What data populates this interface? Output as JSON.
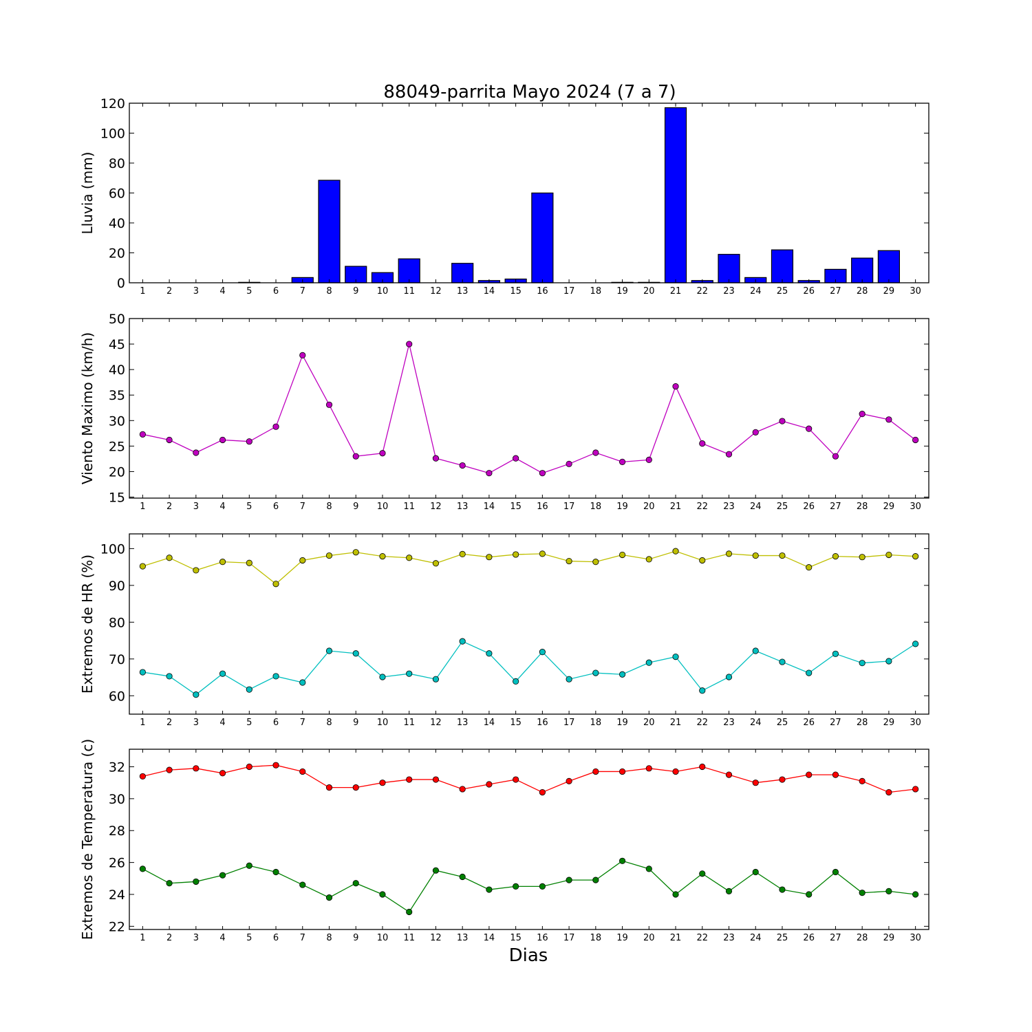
{
  "figure_title": "88049-parrita Mayo 2024  (7 a 7)",
  "shared_xlabel": "Dias",
  "days": [
    "1",
    "2",
    "3",
    "4",
    "5",
    "6",
    "7",
    "8",
    "9",
    "10",
    "11",
    "12",
    "13",
    "14",
    "15",
    "16",
    "17",
    "18",
    "19",
    "20",
    "21",
    "22",
    "23",
    "24",
    "25",
    "26",
    "27",
    "28",
    "29",
    "30"
  ],
  "chart_data": [
    {
      "type": "bar",
      "ylabel": "Lluvia (mm)",
      "ylim": [
        0,
        120
      ],
      "yticks": [
        0,
        20,
        40,
        60,
        80,
        100,
        120
      ],
      "xlim": [
        0.5,
        30.5
      ],
      "categories": [
        1,
        2,
        3,
        4,
        5,
        6,
        7,
        8,
        9,
        10,
        11,
        12,
        13,
        14,
        15,
        16,
        17,
        18,
        19,
        20,
        21,
        22,
        23,
        24,
        25,
        26,
        27,
        28,
        29,
        30
      ],
      "series": [
        {
          "color": "#0000ff",
          "values": [
            0,
            0,
            0,
            0,
            0.3,
            0,
            3.5,
            68.5,
            11,
            6.8,
            16,
            0,
            13,
            1.5,
            2.5,
            60,
            0,
            0,
            0.3,
            0.3,
            117,
            1.5,
            19,
            3.5,
            22,
            1.5,
            9,
            16.5,
            21.5,
            0
          ]
        }
      ],
      "grid": false
    },
    {
      "type": "line",
      "ylabel": "Viento Maximo (km/h)",
      "ylim": [
        14.8,
        50
      ],
      "yticks": [
        15,
        20,
        25,
        30,
        35,
        40,
        45,
        50
      ],
      "xlim": [
        0.5,
        30.5
      ],
      "x": [
        1,
        2,
        3,
        4,
        5,
        6,
        7,
        8,
        9,
        10,
        11,
        12,
        13,
        14,
        15,
        16,
        17,
        18,
        19,
        20,
        21,
        22,
        23,
        24,
        25,
        26,
        27,
        28,
        29,
        30
      ],
      "series": [
        {
          "color": "#bf00bf",
          "values": [
            27.3,
            26.2,
            23.7,
            26.2,
            25.9,
            28.8,
            42.8,
            33.1,
            23.0,
            23.6,
            45.0,
            22.6,
            21.2,
            19.7,
            22.6,
            19.7,
            21.5,
            23.7,
            21.9,
            22.3,
            36.7,
            25.5,
            23.4,
            27.7,
            29.9,
            28.4,
            23.0,
            31.3,
            30.2,
            26.2
          ]
        }
      ],
      "grid": false
    },
    {
      "type": "line",
      "ylabel": "Extremos de HR (%)",
      "ylim": [
        55,
        104
      ],
      "yticks": [
        60,
        70,
        80,
        90,
        100
      ],
      "xlim": [
        0.5,
        30.5
      ],
      "x": [
        1,
        2,
        3,
        4,
        5,
        6,
        7,
        8,
        9,
        10,
        11,
        12,
        13,
        14,
        15,
        16,
        17,
        18,
        19,
        20,
        21,
        22,
        23,
        24,
        25,
        26,
        27,
        28,
        29,
        30
      ],
      "series": [
        {
          "color": "#bfbf00",
          "values": [
            95.2,
            97.5,
            94.1,
            96.4,
            96.1,
            90.4,
            96.8,
            98.1,
            99.0,
            97.9,
            97.5,
            96.0,
            98.5,
            97.7,
            98.4,
            98.6,
            96.6,
            96.4,
            98.3,
            97.1,
            99.3,
            96.8,
            98.6,
            98.1,
            98.1,
            94.9,
            97.9,
            97.7,
            98.3,
            97.9
          ]
        },
        {
          "color": "#00bfbf",
          "values": [
            66.4,
            65.3,
            60.3,
            66.0,
            61.7,
            65.3,
            63.6,
            72.2,
            71.5,
            65.1,
            66.0,
            64.5,
            74.8,
            71.5,
            63.9,
            71.9,
            64.5,
            66.2,
            65.8,
            69.0,
            70.6,
            61.4,
            65.1,
            72.2,
            69.2,
            66.2,
            71.4,
            68.9,
            69.4,
            74.1
          ]
        }
      ],
      "grid": false
    },
    {
      "type": "line",
      "ylabel": "Extremos de Temperatura (c)",
      "ylim": [
        21.8,
        33.1
      ],
      "yticks": [
        22,
        24,
        26,
        28,
        30,
        32
      ],
      "xlim": [
        0.5,
        30.5
      ],
      "x": [
        1,
        2,
        3,
        4,
        5,
        6,
        7,
        8,
        9,
        10,
        11,
        12,
        13,
        14,
        15,
        16,
        17,
        18,
        19,
        20,
        21,
        22,
        23,
        24,
        25,
        26,
        27,
        28,
        29,
        30
      ],
      "series": [
        {
          "color": "#ff0000",
          "values": [
            31.4,
            31.8,
            31.9,
            31.6,
            32.0,
            32.1,
            31.7,
            30.7,
            30.7,
            31.0,
            31.2,
            31.2,
            30.6,
            30.9,
            31.2,
            30.4,
            31.1,
            31.7,
            31.7,
            31.9,
            31.7,
            32.0,
            31.5,
            31.0,
            31.2,
            31.5,
            31.5,
            31.1,
            30.4,
            30.6
          ]
        },
        {
          "color": "#008000",
          "values": [
            25.6,
            24.7,
            24.8,
            25.2,
            25.8,
            25.4,
            24.6,
            23.8,
            24.7,
            24.0,
            22.9,
            25.5,
            25.1,
            24.3,
            24.5,
            24.5,
            24.9,
            24.9,
            26.1,
            25.6,
            24.0,
            25.3,
            24.2,
            25.4,
            24.3,
            24.0,
            25.4,
            24.1,
            24.2,
            24.0
          ]
        }
      ],
      "grid": false
    }
  ]
}
